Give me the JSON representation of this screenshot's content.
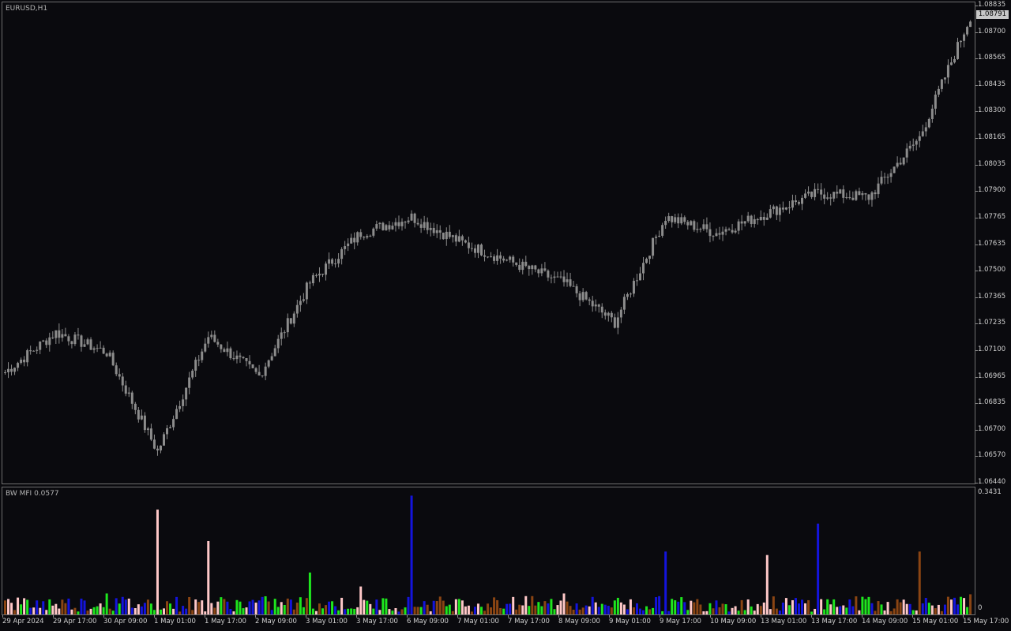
{
  "chart_window": {
    "symbol_title": "EURUSD,H1",
    "indicator_title": "BW MFI 0.0577",
    "current_price": "1.08791",
    "colors": {
      "background": "#0a0a0e",
      "candle": "#8c8c8c",
      "grid_border": "#6e6e6e",
      "mfi_green": "#1ee61e",
      "mfi_brown": "#8b4513",
      "mfi_blue": "#1414dc",
      "mfi_pink": "#ffc8c8"
    }
  },
  "price_axis": [
    "1.08835",
    "1.08700",
    "1.08565",
    "1.08435",
    "1.08300",
    "1.08165",
    "1.08035",
    "1.07900",
    "1.07765",
    "1.07635",
    "1.07500",
    "1.07365",
    "1.07235",
    "1.07100",
    "1.06965",
    "1.06835",
    "1.06700",
    "1.06570",
    "1.06440"
  ],
  "indicator_axis": [
    "0.3431",
    "0"
  ],
  "time_axis": [
    "29 Apr 2024",
    "29 Apr 17:00",
    "30 Apr 09:00",
    "1 May 01:00",
    "1 May 17:00",
    "2 May 09:00",
    "3 May 01:00",
    "3 May 17:00",
    "6 May 09:00",
    "7 May 01:00",
    "7 May 17:00",
    "8 May 09:00",
    "9 May 01:00",
    "9 May 17:00",
    "10 May 09:00",
    "13 May 01:00",
    "13 May 17:00",
    "14 May 09:00",
    "15 May 01:00",
    "15 May 17:00"
  ],
  "chart_data": [
    {
      "type": "line",
      "series": [
        {
          "name": "EURUSD,H1",
          "x": [
            "29 Apr 2024",
            "29 Apr 17:00",
            "30 Apr 09:00",
            "1 May 01:00",
            "1 May 17:00",
            "2 May 09:00",
            "3 May 01:00",
            "3 May 17:00",
            "6 May 09:00",
            "7 May 01:00",
            "7 May 17:00",
            "8 May 09:00",
            "9 May 01:00",
            "9 May 17:00",
            "10 May 09:00",
            "13 May 01:00",
            "13 May 17:00",
            "14 May 09:00",
            "15 May 01:00",
            "15 May 17:00"
          ],
          "values": [
            1.07,
            1.072,
            1.071,
            1.066,
            1.0718,
            1.0698,
            1.0745,
            1.077,
            1.0778,
            1.0765,
            1.0755,
            1.0745,
            1.0725,
            1.0778,
            1.077,
            1.078,
            1.079,
            1.0788,
            1.0818,
            1.0879
          ]
        }
      ],
      "ylim": [
        1.0644,
        1.0884
      ]
    },
    {
      "type": "bar",
      "series": [
        {
          "name": "BW MFI 0.0577",
          "x": [
            "29 Apr 2024",
            "29 Apr 17:00",
            "30 Apr 09:00",
            "1 May 01:00",
            "1 May 17:00",
            "2 May 09:00",
            "3 May 01:00",
            "3 May 17:00",
            "6 May 09:00",
            "7 May 01:00",
            "7 May 17:00",
            "8 May 09:00",
            "9 May 01:00",
            "9 May 17:00",
            "10 May 09:00",
            "13 May 01:00",
            "13 May 17:00",
            "14 May 09:00",
            "15 May 01:00",
            "15 May 17:00"
          ],
          "values": [
            0.04,
            0.03,
            0.06,
            0.3,
            0.21,
            0.04,
            0.12,
            0.08,
            0.34,
            0.04,
            0.05,
            0.06,
            0.04,
            0.18,
            0.04,
            0.17,
            0.26,
            0.05,
            0.18,
            0.0577
          ]
        }
      ],
      "ylim": [
        0,
        0.3431
      ]
    }
  ]
}
